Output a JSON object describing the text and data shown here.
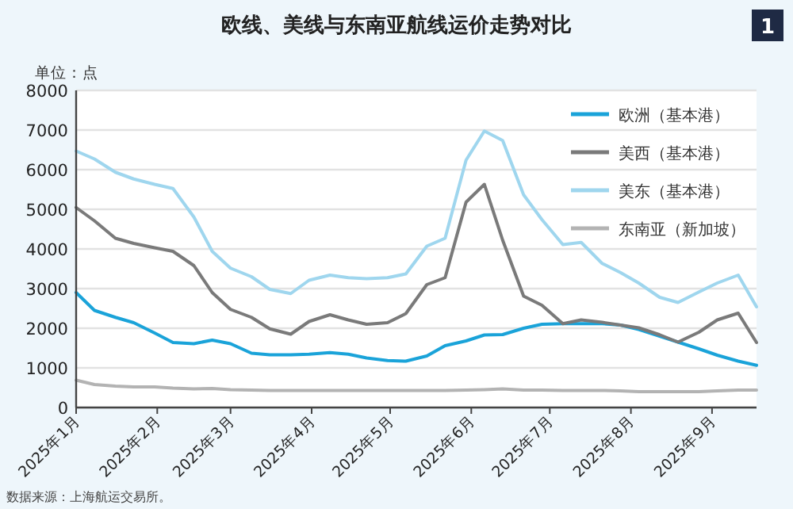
{
  "chart_data": {
    "type": "line",
    "title": "欧线、美线与东南亚航线运价走势对比",
    "ylabel": "单位：点",
    "annotations": [
      "数据来源：上海航运交易所。",
      "1"
    ],
    "x": [
      "2025-01-01",
      "2025-01-08",
      "2025-01-16",
      "2025-01-23",
      "2025-01-31",
      "2025-02-07",
      "2025-02-15",
      "2025-02-22",
      "2025-03-01",
      "2025-03-09",
      "2025-03-16",
      "2025-03-24",
      "2025-03-31",
      "2025-04-08",
      "2025-04-15",
      "2025-04-22",
      "2025-04-30",
      "2025-05-07",
      "2025-05-15",
      "2025-05-22",
      "2025-05-30",
      "2025-06-06",
      "2025-06-13",
      "2025-06-21",
      "2025-06-28",
      "2025-07-06",
      "2025-07-13",
      "2025-07-21",
      "2025-07-28",
      "2025-08-04",
      "2025-08-12",
      "2025-08-19",
      "2025-08-27",
      "2025-09-03",
      "2025-09-11",
      "2025-09-18"
    ],
    "series": [
      {
        "name": "欧洲（基本港）",
        "color": "#1aa3d9",
        "values": [
          2900,
          2450,
          2275,
          2140,
          1880,
          1640,
          1610,
          1700,
          1610,
          1370,
          1330,
          1330,
          1345,
          1385,
          1345,
          1250,
          1185,
          1170,
          1300,
          1560,
          1680,
          1830,
          1840,
          2000,
          2100,
          2115,
          2115,
          2115,
          2080,
          1970,
          1800,
          1650,
          1480,
          1320,
          1170,
          1065
        ]
      },
      {
        "name": "美西（基本港）",
        "color": "#7a7a7a",
        "values": [
          5045,
          4710,
          4270,
          4140,
          4030,
          3940,
          3580,
          2900,
          2475,
          2275,
          1985,
          1850,
          2170,
          2340,
          2210,
          2100,
          2140,
          2370,
          3100,
          3275,
          5180,
          5630,
          4220,
          2810,
          2580,
          2115,
          2210,
          2150,
          2080,
          2010,
          1835,
          1650,
          1900,
          2210,
          2380,
          1640
        ]
      },
      {
        "name": "美东（基本港）",
        "color": "#9fd6ee",
        "values": [
          6470,
          6270,
          5935,
          5765,
          5630,
          5525,
          4805,
          3940,
          3515,
          3300,
          2980,
          2875,
          3210,
          3340,
          3275,
          3250,
          3275,
          3370,
          4070,
          4270,
          6240,
          6975,
          6735,
          5365,
          4740,
          4110,
          4165,
          3635,
          3405,
          3140,
          2780,
          2650,
          2915,
          3140,
          3340,
          2540
        ]
      },
      {
        "name": "东南亚（新加坡）",
        "color": "#b3b3b3",
        "values": [
          690,
          580,
          540,
          520,
          520,
          490,
          470,
          480,
          450,
          440,
          430,
          430,
          430,
          430,
          430,
          430,
          430,
          430,
          430,
          430,
          440,
          450,
          470,
          440,
          440,
          430,
          430,
          430,
          420,
          400,
          400,
          400,
          400,
          420,
          440,
          440
        ]
      }
    ],
    "xlim": [
      "2025-01-01",
      "2025-09-18"
    ],
    "xticks": [
      {
        "value": "2025-01-01",
        "label": "2025年1月"
      },
      {
        "value": "2025-02-01",
        "label": "2025年2月"
      },
      {
        "value": "2025-03-01",
        "label": "2025年3月"
      },
      {
        "value": "2025-04-01",
        "label": "2025年4月"
      },
      {
        "value": "2025-05-01",
        "label": "2025年5月"
      },
      {
        "value": "2025-06-01",
        "label": "2025年6月"
      },
      {
        "value": "2025-07-01",
        "label": "2025年7月"
      },
      {
        "value": "2025-08-01",
        "label": "2025年8月"
      },
      {
        "value": "2025-09-01",
        "label": "2025年9月"
      }
    ],
    "ylim": [
      0,
      8000
    ],
    "yticks": [
      0,
      1000,
      2000,
      3000,
      4000,
      5000,
      6000,
      7000,
      8000
    ],
    "grid": "y",
    "legend": "top right",
    "marker": "none",
    "line_style": "solid"
  }
}
